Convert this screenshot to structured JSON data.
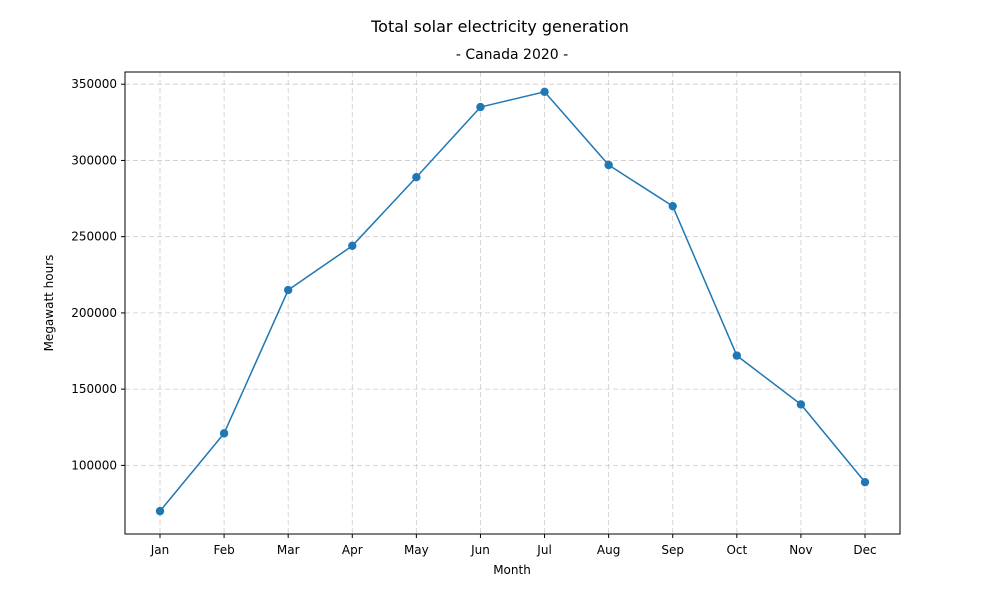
{
  "chart_data": {
    "type": "line",
    "title": "Total solar electricity generation",
    "subtitle": "- Canada 2020 -",
    "xlabel": "Month",
    "ylabel": "Megawatt hours",
    "categories": [
      "Jan",
      "Feb",
      "Mar",
      "Apr",
      "May",
      "Jun",
      "Jul",
      "Aug",
      "Sep",
      "Oct",
      "Nov",
      "Dec"
    ],
    "series": [
      {
        "values": [
          70000,
          121000,
          215000,
          244000,
          289000,
          335000,
          345000,
          297000,
          270000,
          172000,
          140000,
          89000
        ],
        "color": "#1f77b4",
        "marker": "circle"
      }
    ],
    "ylim": [
      55000,
      358000
    ],
    "yticks": [
      100000,
      150000,
      200000,
      250000,
      300000,
      350000
    ],
    "ytick_labels": [
      "100000",
      "150000",
      "200000",
      "250000",
      "300000",
      "350000"
    ],
    "grid": true,
    "legend": "none"
  }
}
